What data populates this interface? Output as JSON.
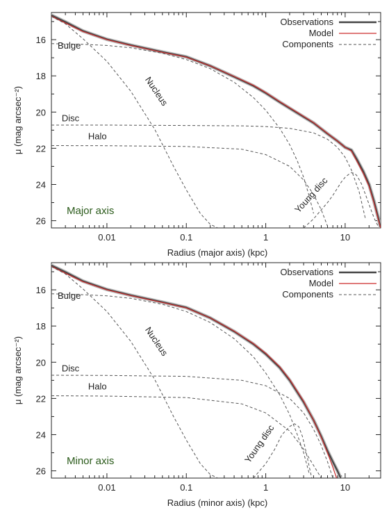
{
  "colors": {
    "observations": "#444444",
    "observations_band": "#b8b8b8",
    "model": "#cc2a2a",
    "components": "#555555",
    "panel_label": "#2a5a1a",
    "frame": "#222222"
  },
  "chart_data": [
    {
      "type": "line",
      "panel_label": "Major axis",
      "xlabel": "Radius (major axis)  (kpc)",
      "ylabel": "μ  (mag arcsec⁻²)",
      "xscale": "log",
      "xlim": [
        0.002,
        28
      ],
      "ylim": [
        26.4,
        14.5
      ],
      "y_inverted": true,
      "xticks": [
        0.01,
        0.1,
        1,
        10
      ],
      "xtick_labels": [
        "0.01",
        "0.1",
        "1",
        "10"
      ],
      "yticks": [
        16,
        18,
        20,
        22,
        24,
        26
      ],
      "ytick_labels": [
        "16",
        "18",
        "20",
        "22",
        "24",
        "26"
      ],
      "legend": {
        "position": "top-right",
        "entries": [
          "Observations",
          "Model",
          "Components"
        ]
      },
      "annotations": [
        {
          "text": "Bulge",
          "x": 0.0024,
          "y": 16.5
        },
        {
          "text": "Nucleus",
          "x": 0.03,
          "y": 18.2,
          "angle": 56
        },
        {
          "text": "Disc",
          "x": 0.0027,
          "y": 20.5
        },
        {
          "text": "Halo",
          "x": 0.0058,
          "y": 21.5
        },
        {
          "text": "Young disc",
          "x": 2.6,
          "y": 25.6,
          "angle": -48
        }
      ],
      "series": [
        {
          "name": "Observations",
          "style": "solid-thick",
          "x": [
            0.002,
            0.003,
            0.005,
            0.01,
            0.02,
            0.05,
            0.1,
            0.2,
            0.4,
            0.7,
            1.0,
            1.5,
            2.5,
            4.0,
            6.0,
            8.0,
            10.0,
            12.0,
            14.0,
            17.0,
            20.0,
            23.0,
            26.0,
            28.0
          ],
          "y": [
            14.65,
            15.02,
            15.52,
            15.98,
            16.3,
            16.68,
            16.95,
            17.45,
            18.05,
            18.55,
            18.95,
            19.45,
            20.05,
            20.6,
            21.2,
            21.6,
            21.95,
            22.1,
            22.6,
            23.3,
            24.0,
            24.9,
            25.8,
            26.4
          ]
        },
        {
          "name": "Model",
          "style": "solid-thin",
          "x": [
            0.002,
            0.003,
            0.005,
            0.01,
            0.02,
            0.05,
            0.1,
            0.2,
            0.4,
            0.7,
            1.0,
            1.5,
            2.5,
            4.0,
            6.0,
            8.0,
            10.0,
            12.0,
            14.0,
            17.0,
            20.0,
            23.0,
            26.0,
            28.0
          ],
          "y": [
            14.7,
            15.08,
            15.55,
            16.0,
            16.32,
            16.7,
            16.97,
            17.45,
            18.03,
            18.52,
            18.92,
            19.42,
            20.02,
            20.58,
            21.18,
            21.6,
            21.95,
            22.15,
            22.7,
            23.4,
            24.1,
            25.0,
            25.9,
            26.4
          ]
        },
        {
          "name": "Bulge",
          "style": "dashed",
          "x": [
            0.002,
            0.005,
            0.01,
            0.02,
            0.05,
            0.1,
            0.2,
            0.4,
            0.7,
            1.0,
            1.5,
            2.0,
            2.5,
            3.0,
            3.5,
            4.0
          ],
          "y": [
            16.22,
            16.26,
            16.32,
            16.45,
            16.75,
            17.1,
            17.6,
            18.35,
            19.2,
            19.9,
            20.9,
            21.8,
            22.7,
            23.6,
            24.6,
            25.6
          ]
        },
        {
          "name": "Nucleus",
          "style": "dashed",
          "x": [
            0.002,
            0.003,
            0.005,
            0.01,
            0.02,
            0.04,
            0.07,
            0.1,
            0.15,
            0.2,
            0.25
          ],
          "y": [
            14.72,
            15.12,
            15.95,
            17.2,
            18.85,
            20.95,
            23.05,
            24.3,
            25.6,
            26.2,
            26.4
          ]
        },
        {
          "name": "Disc",
          "style": "dashed",
          "x": [
            0.002,
            0.01,
            0.1,
            0.5,
            1.0,
            2.0,
            4.0,
            6.0,
            8.0,
            10.0,
            12.0,
            15.0,
            18.0
          ],
          "y": [
            20.72,
            20.72,
            20.74,
            20.76,
            20.8,
            20.9,
            21.15,
            21.5,
            21.95,
            22.5,
            23.2,
            24.4,
            25.9
          ]
        },
        {
          "name": "Halo",
          "style": "dashed",
          "x": [
            0.002,
            0.01,
            0.1,
            0.5,
            1.0,
            2.0,
            3.0,
            4.0,
            5.0,
            6.0
          ],
          "y": [
            21.85,
            21.86,
            21.9,
            22.05,
            22.35,
            23.0,
            23.75,
            24.55,
            25.4,
            26.3
          ]
        },
        {
          "name": "Young disc",
          "style": "dashed",
          "x": [
            3.0,
            4.0,
            5.0,
            6.0,
            7.0,
            8.0,
            9.0,
            10.0,
            11.0,
            12.0,
            13.0,
            14.0,
            16.0,
            18.0,
            20.0,
            22.0,
            24.0,
            26.0
          ],
          "y": [
            26.4,
            25.9,
            25.4,
            25.0,
            24.6,
            24.2,
            23.85,
            23.6,
            23.45,
            23.35,
            23.38,
            23.5,
            23.95,
            24.55,
            25.1,
            25.6,
            26.0,
            26.3
          ]
        }
      ]
    },
    {
      "type": "line",
      "panel_label": "Minor axis",
      "xlabel": "Radius (minor axis)  (kpc)",
      "ylabel": "μ  (mag arcsec⁻²)",
      "xscale": "log",
      "xlim": [
        0.002,
        28
      ],
      "ylim": [
        26.4,
        14.5
      ],
      "y_inverted": true,
      "xticks": [
        0.01,
        0.1,
        1,
        10
      ],
      "xtick_labels": [
        "0.01",
        "0.1",
        "1",
        "10"
      ],
      "yticks": [
        16,
        18,
        20,
        22,
        24,
        26
      ],
      "ytick_labels": [
        "16",
        "18",
        "20",
        "22",
        "24",
        "26"
      ],
      "legend": {
        "position": "top-right",
        "entries": [
          "Observations",
          "Model",
          "Components"
        ]
      },
      "annotations": [
        {
          "text": "Bulge",
          "x": 0.0024,
          "y": 16.5
        },
        {
          "text": "Nucleus",
          "x": 0.03,
          "y": 18.2,
          "angle": 56
        },
        {
          "text": "Disc",
          "x": 0.0027,
          "y": 20.5
        },
        {
          "text": "Halo",
          "x": 0.0058,
          "y": 21.5
        },
        {
          "text": "Young disc",
          "x": 0.62,
          "y": 25.6,
          "angle": -55
        }
      ],
      "series": [
        {
          "name": "Observations",
          "style": "solid-thick",
          "x": [
            0.002,
            0.003,
            0.005,
            0.01,
            0.02,
            0.05,
            0.1,
            0.2,
            0.4,
            0.7,
            1.0,
            1.5,
            2.0,
            3.0,
            4.0,
            5.0,
            6.0,
            7.0,
            8.0,
            8.8
          ],
          "y": [
            14.65,
            15.02,
            15.52,
            15.98,
            16.3,
            16.68,
            16.98,
            17.55,
            18.3,
            19.0,
            19.55,
            20.3,
            21.0,
            22.2,
            23.2,
            24.1,
            24.9,
            25.5,
            26.0,
            26.4
          ]
        },
        {
          "name": "Model",
          "style": "solid-thin",
          "x": [
            0.002,
            0.003,
            0.005,
            0.01,
            0.02,
            0.05,
            0.1,
            0.2,
            0.4,
            0.7,
            1.0,
            1.5,
            2.0,
            3.0,
            4.0,
            5.0,
            6.0,
            7.0,
            7.8
          ],
          "y": [
            14.7,
            15.08,
            15.55,
            16.0,
            16.32,
            16.7,
            17.0,
            17.55,
            18.28,
            18.97,
            19.5,
            20.25,
            20.95,
            22.15,
            23.2,
            24.15,
            25.0,
            25.8,
            26.4
          ]
        },
        {
          "name": "Bulge",
          "style": "dashed",
          "x": [
            0.002,
            0.005,
            0.01,
            0.02,
            0.05,
            0.1,
            0.2,
            0.4,
            0.7,
            1.0,
            1.5,
            2.0,
            2.5,
            3.0,
            3.5
          ],
          "y": [
            16.22,
            16.27,
            16.33,
            16.47,
            16.8,
            17.2,
            17.8,
            18.7,
            19.7,
            20.6,
            21.8,
            22.9,
            24.0,
            25.0,
            26.1
          ]
        },
        {
          "name": "Nucleus",
          "style": "dashed",
          "x": [
            0.002,
            0.003,
            0.005,
            0.01,
            0.02,
            0.04,
            0.07,
            0.1,
            0.15,
            0.2,
            0.25
          ],
          "y": [
            14.72,
            15.12,
            15.95,
            17.2,
            18.85,
            20.95,
            23.05,
            24.3,
            25.6,
            26.2,
            26.4
          ]
        },
        {
          "name": "Disc",
          "style": "dashed",
          "x": [
            0.002,
            0.01,
            0.1,
            0.5,
            1.0,
            2.0,
            3.0,
            4.0,
            5.0,
            6.0,
            7.0
          ],
          "y": [
            20.72,
            20.73,
            20.78,
            21.0,
            21.3,
            22.0,
            22.8,
            23.7,
            24.6,
            25.5,
            26.4
          ]
        },
        {
          "name": "Halo",
          "style": "dashed",
          "x": [
            0.002,
            0.01,
            0.1,
            0.5,
            1.0,
            2.0,
            3.0,
            4.0,
            5.0
          ],
          "y": [
            21.85,
            21.87,
            21.95,
            22.3,
            22.8,
            23.8,
            24.8,
            25.7,
            26.4
          ]
        },
        {
          "name": "Young disc",
          "style": "dashed",
          "x": [
            0.7,
            1.0,
            1.3,
            1.6,
            2.0,
            2.3,
            2.6,
            2.9,
            3.2,
            3.5,
            3.8
          ],
          "y": [
            26.4,
            25.6,
            24.8,
            24.0,
            23.55,
            23.4,
            23.55,
            24.1,
            24.9,
            25.7,
            26.4
          ]
        }
      ]
    }
  ]
}
